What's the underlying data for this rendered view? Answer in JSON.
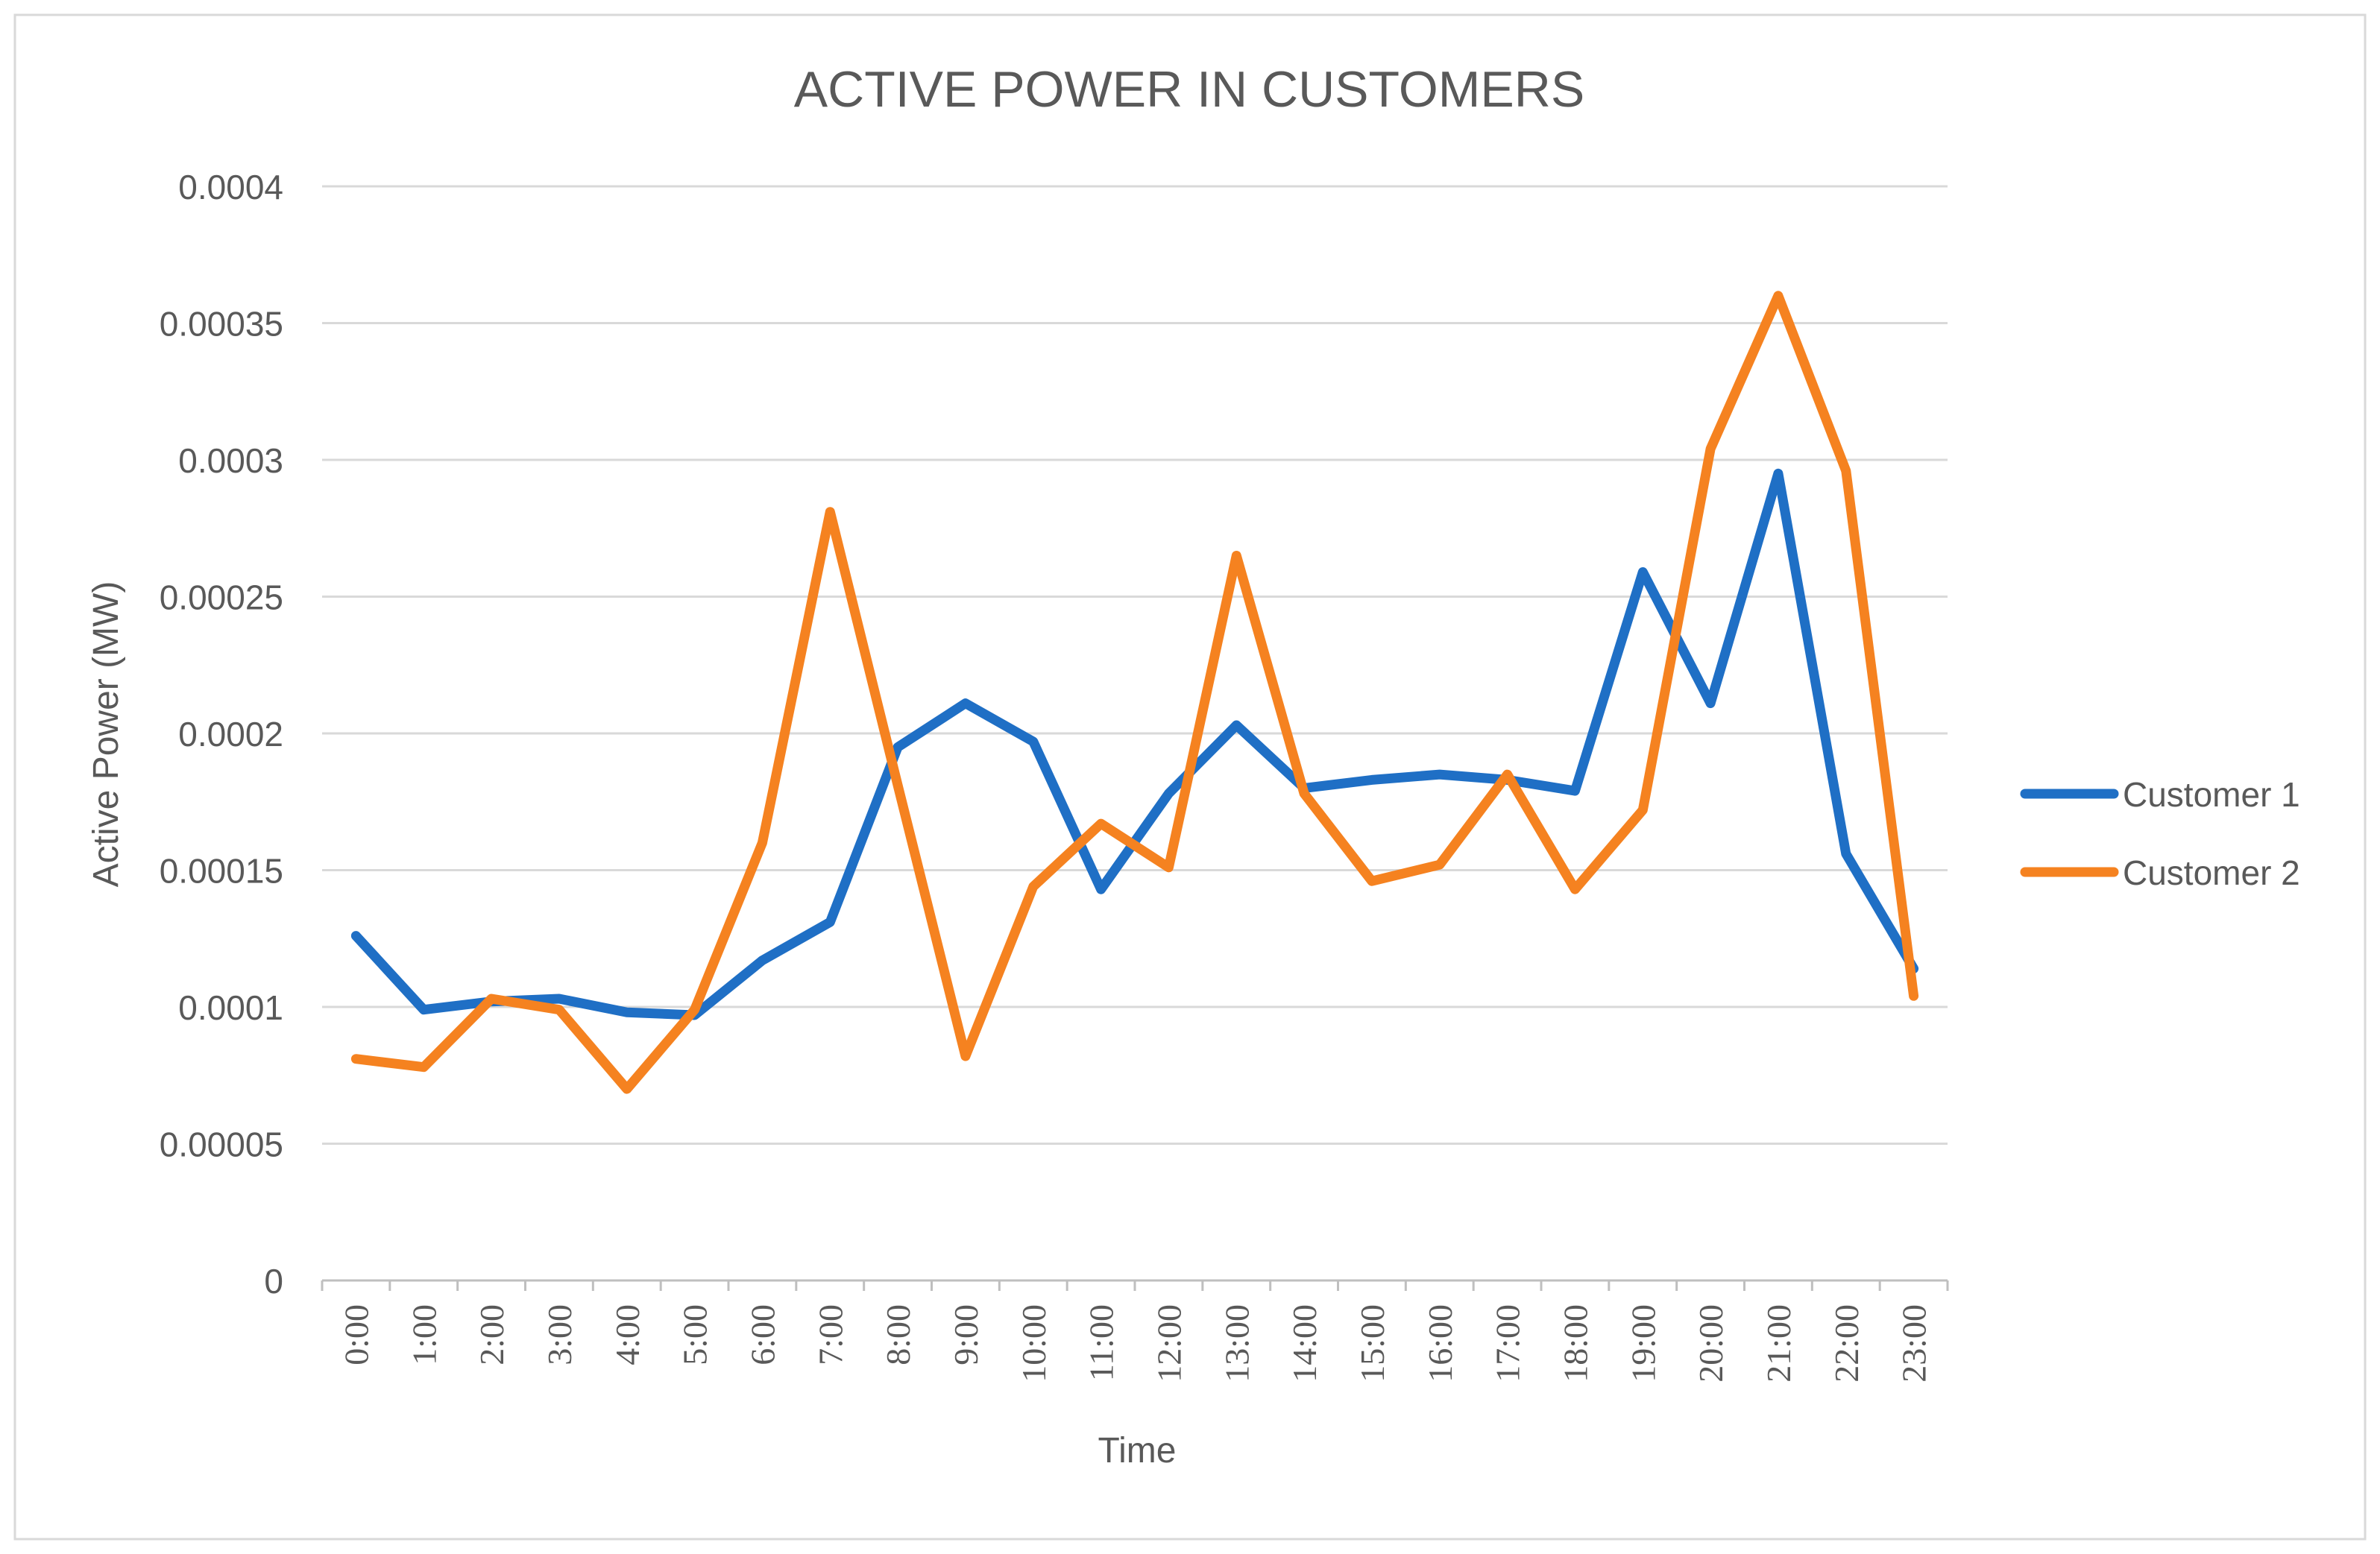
{
  "chart_data": {
    "type": "line",
    "title": "ACTIVE POWER IN CUSTOMERS",
    "xlabel": "Time",
    "ylabel": "Active Power (MW)",
    "ylim": [
      0,
      0.0004
    ],
    "yticks": [
      "0",
      "0.00005",
      "0.0001",
      "0.00015",
      "0.0002",
      "0.00025",
      "0.0003",
      "0.00035",
      "0.0004"
    ],
    "ytick_values": [
      0,
      5e-05,
      0.0001,
      0.00015,
      0.0002,
      0.00025,
      0.0003,
      0.00035,
      0.0004
    ],
    "grid": true,
    "legend_position": "right",
    "categories": [
      "0:00",
      "1:00",
      "2:00",
      "3:00",
      "4:00",
      "5:00",
      "6:00",
      "7:00",
      "8:00",
      "9:00",
      "10:00",
      "11:00",
      "12:00",
      "13:00",
      "14:00",
      "15:00",
      "16:00",
      "17:00",
      "18:00",
      "19:00",
      "20:00",
      "21:00",
      "22:00",
      "23:00"
    ],
    "series": [
      {
        "name": "Customer 1",
        "color": "#1F6FC5",
        "values": [
          0.000126,
          9.9e-05,
          0.000102,
          0.000103,
          9.8e-05,
          9.7e-05,
          0.000117,
          0.000131,
          0.000195,
          0.000211,
          0.000197,
          0.000143,
          0.000178,
          0.000203,
          0.00018,
          0.000183,
          0.000185,
          0.000183,
          0.000179,
          0.000259,
          0.000211,
          0.000295,
          0.000156,
          0.000114
        ]
      },
      {
        "name": "Customer 2",
        "color": "#F58220",
        "values": [
          8.1e-05,
          7.8e-05,
          0.000103,
          9.9e-05,
          7e-05,
          9.9e-05,
          0.00016,
          0.000281,
          0.000181,
          8.2e-05,
          0.000144,
          0.000167,
          0.000151,
          0.000265,
          0.000178,
          0.000146,
          0.000152,
          0.000185,
          0.000143,
          0.000172,
          0.000304,
          0.00036,
          0.000296,
          0.000104
        ]
      }
    ],
    "colors": {
      "background": "#ffffff",
      "border": "#D9D9D9",
      "grid": "#D9D9D9",
      "axis": "#BFBFBF",
      "title": "#595959",
      "text": "#595959"
    }
  }
}
